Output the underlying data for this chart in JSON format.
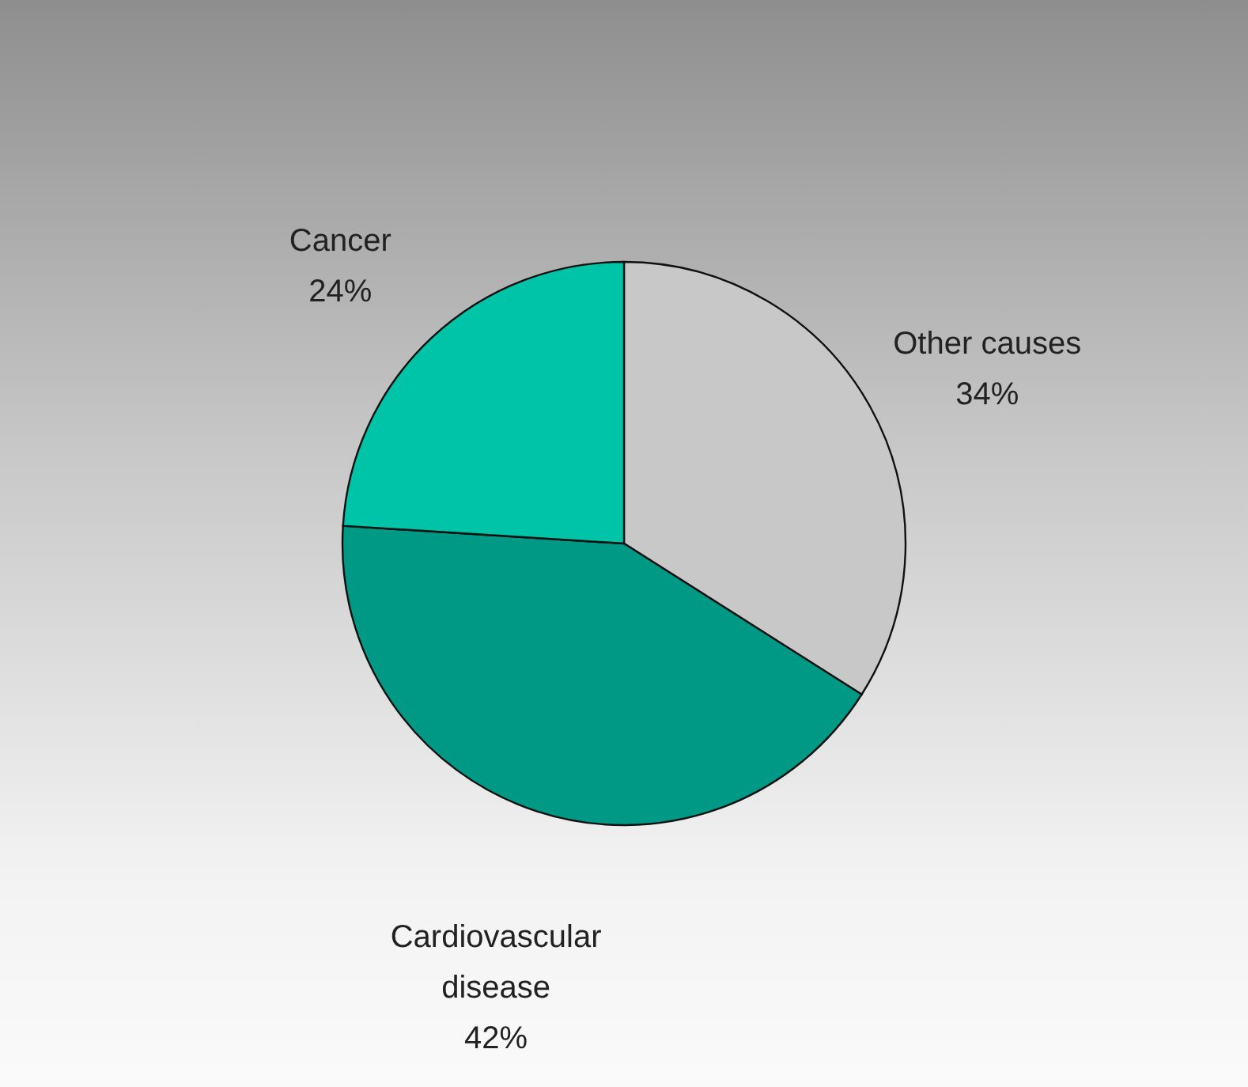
{
  "chart_data": {
    "type": "pie",
    "categories": [
      "Other causes",
      "Cardiovascular disease",
      "Cancer"
    ],
    "values": [
      34,
      42,
      24
    ],
    "colors": [
      "#c8c8c8",
      "#009985",
      "#00c4a7"
    ],
    "value_labels": [
      "34%",
      "42%",
      "24%"
    ]
  }
}
